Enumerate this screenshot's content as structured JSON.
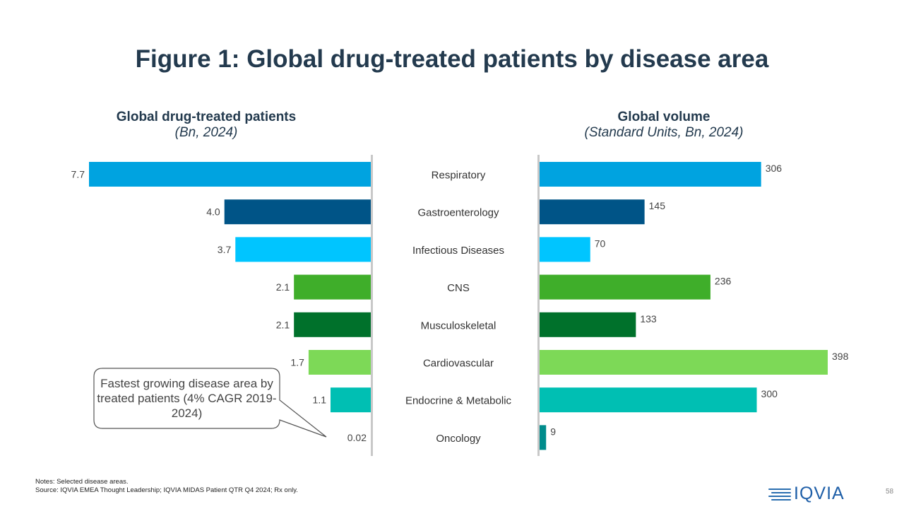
{
  "title": "Figure 1: Global drug-treated patients by disease area",
  "left_panel": {
    "heading": "Global drug-treated patients",
    "subheading": "(Bn, 2024)"
  },
  "right_panel": {
    "heading": "Global volume",
    "subheading": "(Standard Units, Bn, 2024)"
  },
  "callout": {
    "text": "Fastest growing disease area by treated patients (4% CAGR 2019-2024)"
  },
  "notes": {
    "line1": "Notes: Selected disease areas.",
    "line2": "Source: IQVIA EMEA Thought Leadership; IQVIA MIDAS Patient QTR Q4 2024; Rx only."
  },
  "logo": {
    "text": "IQVIA"
  },
  "page_number": "58",
  "chart_data": [
    {
      "type": "bar",
      "orientation": "horizontal",
      "direction": "leftward",
      "title": "Global drug-treated patients",
      "subtitle": "(Bn, 2024)",
      "categories": [
        "Respiratory",
        "Gastroenterology",
        "Infectious Diseases",
        "CNS",
        "Musculoskeletal",
        "Cardiovascular",
        "Endocrine & Metabolic",
        "Oncology"
      ],
      "values": [
        7.7,
        4.0,
        3.7,
        2.1,
        2.1,
        1.7,
        1.1,
        0.02
      ],
      "labels": [
        "7.7",
        "4.0",
        "3.7",
        "2.1",
        "2.1",
        "1.7",
        "1.1",
        "0.02"
      ],
      "colors": [
        "#00a3e0",
        "#005487",
        "#00c5ff",
        "#3fae2a",
        "#00712b",
        "#7dd957",
        "#00bfb3",
        "#008c8c"
      ],
      "xlim": [
        0,
        7.7
      ]
    },
    {
      "type": "bar",
      "orientation": "horizontal",
      "direction": "rightward",
      "title": "Global volume",
      "subtitle": "(Standard Units, Bn, 2024)",
      "categories": [
        "Respiratory",
        "Gastroenterology",
        "Infectious Diseases",
        "CNS",
        "Musculoskeletal",
        "Cardiovascular",
        "Endocrine & Metabolic",
        "Oncology"
      ],
      "values": [
        306,
        145,
        70,
        236,
        133,
        398,
        300,
        9
      ],
      "labels": [
        "306",
        "145",
        "70",
        "236",
        "133",
        "398",
        "300",
        "9"
      ],
      "colors": [
        "#00a3e0",
        "#005487",
        "#00c5ff",
        "#3fae2a",
        "#00712b",
        "#7dd957",
        "#00bfb3",
        "#008c8c"
      ],
      "xlim": [
        0,
        398
      ]
    }
  ]
}
